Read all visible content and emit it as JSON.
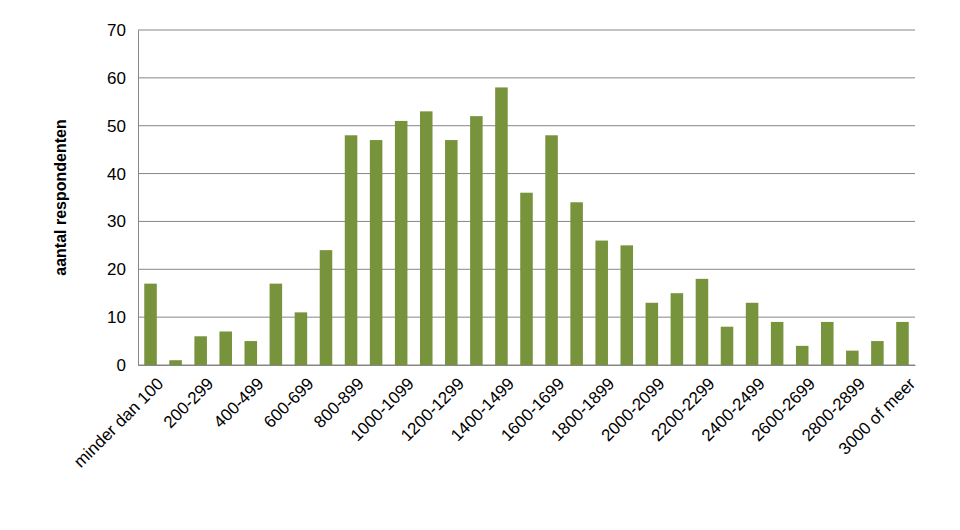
{
  "chart_data": {
    "type": "bar",
    "y_label": "aantal respondenten",
    "categories": [
      "minder dan 100",
      null,
      "200-299",
      null,
      "400-499",
      null,
      "600-699",
      null,
      "800-899",
      null,
      "1000-1099",
      null,
      "1200-1299",
      null,
      "1400-1499",
      null,
      "1600-1699",
      null,
      "1800-1899",
      null,
      "2000-2099",
      null,
      "2200-2299",
      null,
      "2400-2499",
      null,
      "2600-2699",
      null,
      "2800-2899",
      null,
      "3000 of meer"
    ],
    "values": [
      17,
      1,
      6,
      7,
      5,
      17,
      11,
      24,
      48,
      47,
      51,
      53,
      47,
      52,
      58,
      36,
      48,
      34,
      26,
      25,
      13,
      15,
      18,
      8,
      13,
      9,
      4,
      9,
      3,
      5,
      9
    ],
    "color": "#77933c",
    "ylim": [
      0,
      70
    ],
    "yticks": [
      0,
      10,
      20,
      30,
      40,
      50,
      60,
      70
    ],
    "grid": true
  }
}
